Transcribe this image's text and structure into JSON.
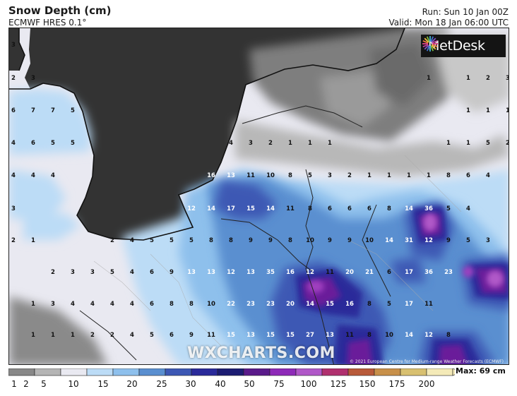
{
  "header": {
    "title": "Snow Depth (cm)",
    "model": "ECMWF HRES 0.1°",
    "run": "Run: Sun 10 Jan 00Z",
    "valid": "Valid: Mon 18 Jan 06:00 UTC"
  },
  "logo": {
    "text": "MetDesk"
  },
  "watermark": "WXCHARTS.COM",
  "copyright": "© 2021 European Centre for Medium-range Weather Forecasts (ECMWF)",
  "legend": {
    "max_label": "Max: 69 cm",
    "ticks": [
      "1",
      "2",
      "5",
      "10",
      "15",
      "20",
      "25",
      "30",
      "40",
      "50",
      "75",
      "100",
      "125",
      "150",
      "175",
      "200"
    ],
    "colors": [
      "#888888",
      "#b5b5b5",
      "#e9e9f1",
      "#bcdcf6",
      "#8ec0ec",
      "#5a8fd0",
      "#3d58b4",
      "#2a2a9a",
      "#1c1c72",
      "#5a1a8a",
      "#8e2ab8",
      "#b058c8",
      "#b0306e",
      "#b85a3a",
      "#c8904a",
      "#d8c070",
      "#f4eab8"
    ]
  },
  "map_values": [
    [
      "3",
      "",
      "",
      "",
      "",
      "",
      "",
      "",
      "",
      "",
      "",
      "",
      "",
      "",
      "",
      "",
      "",
      "",
      "",
      "",
      "",
      "",
      "",
      "",
      "",
      ""
    ],
    [
      "2",
      "3",
      "",
      "",
      "",
      "",
      "",
      "",
      "",
      "",
      "",
      "",
      "",
      "",
      "",
      "",
      "",
      "",
      "",
      "",
      "",
      "1",
      "",
      "1",
      "2",
      "3"
    ],
    [
      "6",
      "7",
      "7",
      "5",
      "",
      "",
      "",
      "",
      "",
      "",
      "",
      "",
      "",
      "",
      "",
      "",
      "",
      "",
      "",
      "",
      "",
      "",
      "",
      "1",
      "1",
      "1"
    ],
    [
      "4",
      "6",
      "5",
      "5",
      "",
      "",
      "",
      "",
      "",
      "",
      "",
      "4",
      "3",
      "2",
      "1",
      "1",
      "1",
      "",
      "",
      "",
      "",
      "",
      "1",
      "1",
      "5",
      "2"
    ],
    [
      "4",
      "4",
      "4",
      "",
      "",
      "",
      "",
      "",
      "",
      "",
      "16",
      "13",
      "11",
      "10",
      "8",
      "5",
      "3",
      "2",
      "1",
      "1",
      "1",
      "1",
      "8",
      "6",
      "4",
      ""
    ],
    [
      "3",
      "",
      "",
      "",
      "",
      "",
      "",
      "",
      "",
      "12",
      "14",
      "17",
      "15",
      "14",
      "11",
      "8",
      "6",
      "6",
      "6",
      "8",
      "14",
      "36",
      "5",
      "4",
      "",
      ""
    ],
    [
      "2",
      "1",
      "",
      "",
      "",
      "2",
      "4",
      "5",
      "5",
      "5",
      "8",
      "8",
      "9",
      "9",
      "8",
      "10",
      "9",
      "9",
      "10",
      "14",
      "31",
      "12",
      "9",
      "5",
      "3",
      ""
    ],
    [
      "",
      "",
      "2",
      "3",
      "3",
      "5",
      "4",
      "6",
      "9",
      "13",
      "13",
      "12",
      "13",
      "35",
      "16",
      "12",
      "11",
      "20",
      "21",
      "6",
      "17",
      "36",
      "23",
      "",
      ""
    ],
    [
      "",
      "1",
      "3",
      "4",
      "4",
      "4",
      "4",
      "6",
      "8",
      "8",
      "10",
      "22",
      "23",
      "23",
      "20",
      "14",
      "15",
      "16",
      "8",
      "5",
      "17",
      "11",
      "",
      "",
      ""
    ],
    [
      "",
      "1",
      "1",
      "1",
      "2",
      "2",
      "4",
      "5",
      "6",
      "9",
      "11",
      "15",
      "13",
      "15",
      "15",
      "27",
      "13",
      "11",
      "8",
      "10",
      "14",
      "12",
      "8",
      "",
      ""
    ]
  ]
}
